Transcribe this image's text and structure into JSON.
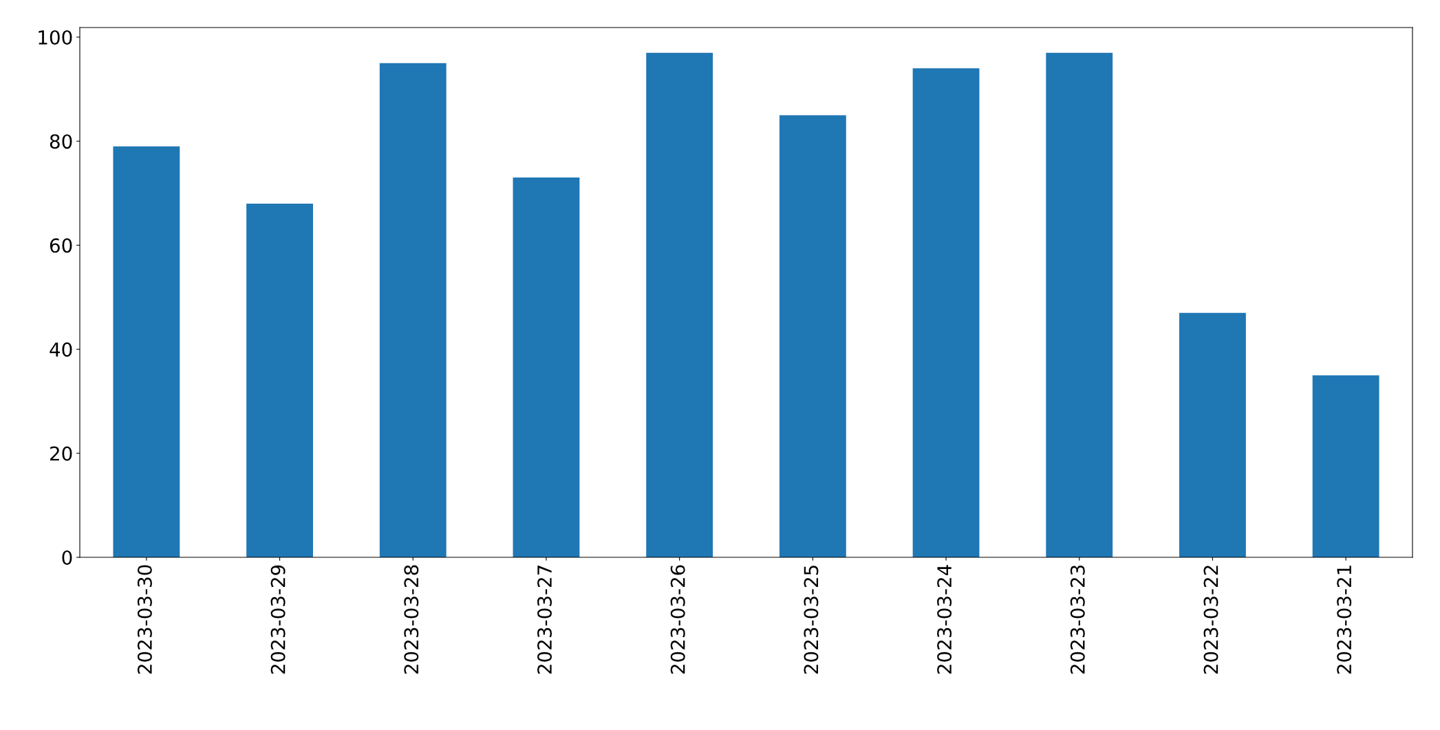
{
  "chart_data": {
    "type": "bar",
    "categories": [
      "2023-03-30",
      "2023-03-29",
      "2023-03-28",
      "2023-03-27",
      "2023-03-26",
      "2023-03-25",
      "2023-03-24",
      "2023-03-23",
      "2023-03-22",
      "2023-03-21"
    ],
    "values": [
      79,
      68,
      95,
      73,
      97,
      85,
      94,
      97,
      47,
      35
    ],
    "color": "#1f77b4",
    "ylim": [
      0,
      101.85
    ],
    "yticks": [
      0,
      20,
      40,
      60,
      80,
      100
    ],
    "grid": false,
    "legend": false
  }
}
